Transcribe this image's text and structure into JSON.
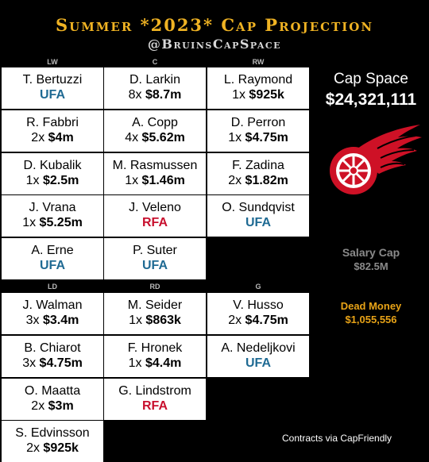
{
  "header": {
    "title": "Summer *2023* Cap Projection",
    "handle": "@BruinsCapSpace"
  },
  "positions": {
    "lw": "LW",
    "c": "C",
    "rw": "RW",
    "ld": "LD",
    "rd": "RD",
    "g": "G"
  },
  "players": {
    "lw1": {
      "name": "T. Bertuzzi",
      "status": "UFA"
    },
    "c1": {
      "name": "D. Larkin",
      "term": "8x",
      "amount": "$8.7m"
    },
    "rw1": {
      "name": "L. Raymond",
      "term": "1x",
      "amount": "$925k"
    },
    "lw2": {
      "name": "R. Fabbri",
      "term": "2x",
      "amount": "$4m"
    },
    "c2": {
      "name": "A. Copp",
      "term": "4x",
      "amount": "$5.62m"
    },
    "rw2": {
      "name": "D. Perron",
      "term": "1x",
      "amount": "$4.75m"
    },
    "lw3": {
      "name": "D. Kubalik",
      "term": "1x",
      "amount": "$2.5m"
    },
    "c3": {
      "name": "M. Rasmussen",
      "term": "1x",
      "amount": "$1.46m"
    },
    "rw3": {
      "name": "F. Zadina",
      "term": "2x",
      "amount": "$1.82m"
    },
    "lw4": {
      "name": "J. Vrana",
      "term": "1x",
      "amount": "$5.25m"
    },
    "c4": {
      "name": "J. Veleno",
      "status": "RFA"
    },
    "rw4": {
      "name": "O. Sundqvist",
      "status": "UFA"
    },
    "lw5": {
      "name": "A. Erne",
      "status": "UFA"
    },
    "c5": {
      "name": "P. Suter",
      "status": "UFA"
    },
    "ld1": {
      "name": "J. Walman",
      "term": "3x",
      "amount": "$3.4m"
    },
    "rd1": {
      "name": "M. Seider",
      "term": "1x",
      "amount": "$863k"
    },
    "g1": {
      "name": "V. Husso",
      "term": "2x",
      "amount": "$4.75m"
    },
    "ld2": {
      "name": "B. Chiarot",
      "term": "3x",
      "amount": "$4.75m"
    },
    "rd2": {
      "name": "F. Hronek",
      "term": "1x",
      "amount": "$4.4m"
    },
    "g2": {
      "name": "A. Nedeljkovi",
      "status": "UFA"
    },
    "ld3": {
      "name": "O. Maatta",
      "term": "2x",
      "amount": "$3m"
    },
    "rd3": {
      "name": "G. Lindstrom",
      "status": "RFA"
    },
    "ld4": {
      "name": "S. Edvinsson",
      "term": "2x",
      "amount": "$925k"
    }
  },
  "summary": {
    "cap_space_label": "Cap Space",
    "cap_space_value": "$24,321,111",
    "salary_cap_label": "Salary Cap",
    "salary_cap_value": "$82.5M",
    "dead_money_label": "Dead Money",
    "dead_money_value": "$1,055,556"
  },
  "credits": "Contracts via CapFriendly",
  "colors": {
    "title": "#f0b323",
    "ufa": "#1f6a93",
    "rfa": "#c8102e",
    "logo": "#ce1126"
  }
}
